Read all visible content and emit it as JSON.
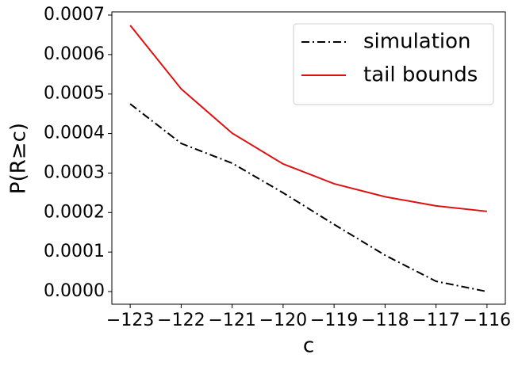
{
  "chart_data": {
    "type": "line",
    "x": [
      -123,
      -122,
      -121,
      -120,
      -119,
      -118,
      -117,
      -116
    ],
    "series": [
      {
        "name": "simulation",
        "color": "#000000",
        "linestyle": "dashdot",
        "values": [
          0.000475,
          0.000375,
          0.000325,
          0.00025,
          0.00017,
          9.2e-05,
          2.6e-05,
          0.0
        ]
      },
      {
        "name": "tail bounds",
        "color": "#dd1111",
        "linestyle": "solid",
        "values": [
          0.000674,
          0.000513,
          0.000401,
          0.000323,
          0.000273,
          0.00024,
          0.000217,
          0.000203
        ]
      }
    ],
    "xlabel": "c",
    "ylabel": "P(R≥c)",
    "xlim": [
      -123.36,
      -115.64
    ],
    "ylim": [
      -3.2e-05,
      0.000708
    ],
    "xticks": [
      {
        "value": -123,
        "label": "−123"
      },
      {
        "value": -122,
        "label": "−122"
      },
      {
        "value": -121,
        "label": "−121"
      },
      {
        "value": -120,
        "label": "−120"
      },
      {
        "value": -119,
        "label": "−119"
      },
      {
        "value": -118,
        "label": "−118"
      },
      {
        "value": -117,
        "label": "−117"
      },
      {
        "value": -116,
        "label": "−116"
      }
    ],
    "yticks": [
      {
        "value": 0,
        "label": "0.0000"
      },
      {
        "value": 0.0001,
        "label": "0.0001"
      },
      {
        "value": 0.0002,
        "label": "0.0002"
      },
      {
        "value": 0.0003,
        "label": "0.0003"
      },
      {
        "value": 0.0004,
        "label": "0.0004"
      },
      {
        "value": 0.0005,
        "label": "0.0005"
      },
      {
        "value": 0.0006,
        "label": "0.0006"
      },
      {
        "value": 0.0007,
        "label": "0.0007"
      }
    ],
    "legend": "upper right"
  }
}
